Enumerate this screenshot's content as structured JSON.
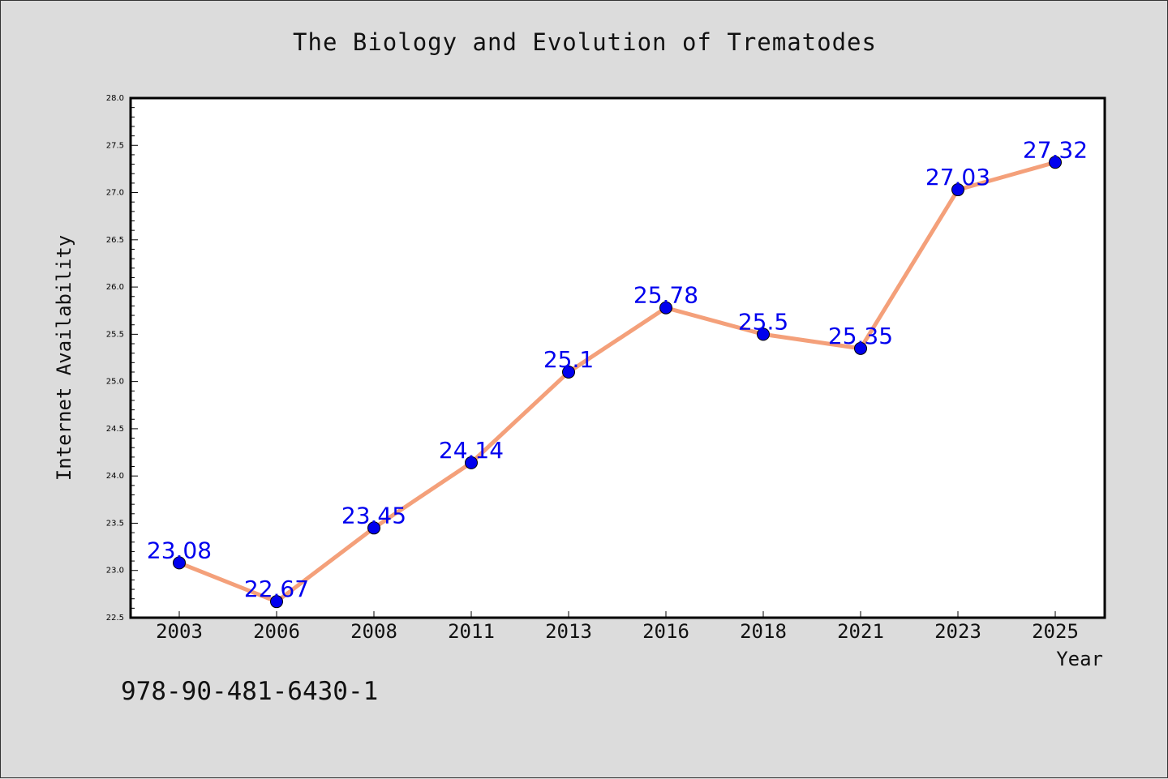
{
  "chart_data": {
    "type": "line",
    "title": "The Biology and Evolution of Trematodes",
    "xlabel": "Year",
    "ylabel": "Internet Availability",
    "categories": [
      "2003",
      "2006",
      "2008",
      "2011",
      "2013",
      "2016",
      "2018",
      "2021",
      "2023",
      "2025"
    ],
    "series": [
      {
        "values": [
          23.08,
          22.67,
          23.45,
          24.14,
          25.1,
          25.78,
          25.5,
          25.35,
          27.03,
          27.32
        ],
        "data_labels": [
          "23.08",
          "22.67",
          "23.45",
          "24.14",
          "25.1",
          "25.78",
          "25.5",
          "25.35",
          "27.03",
          "27.32"
        ],
        "line_color": "#f4a07a",
        "marker_color": "#0000ee"
      }
    ],
    "ylim": [
      22.5,
      28.0
    ],
    "yticks": [
      "22.5",
      "23.0",
      "23.5",
      "24.0",
      "24.5",
      "25.0",
      "25.5",
      "26.0",
      "26.5",
      "27.0",
      "27.5",
      "28.0"
    ],
    "grid": false,
    "label_color": "#0000ee"
  },
  "footer_text": "978-90-481-6430-1"
}
